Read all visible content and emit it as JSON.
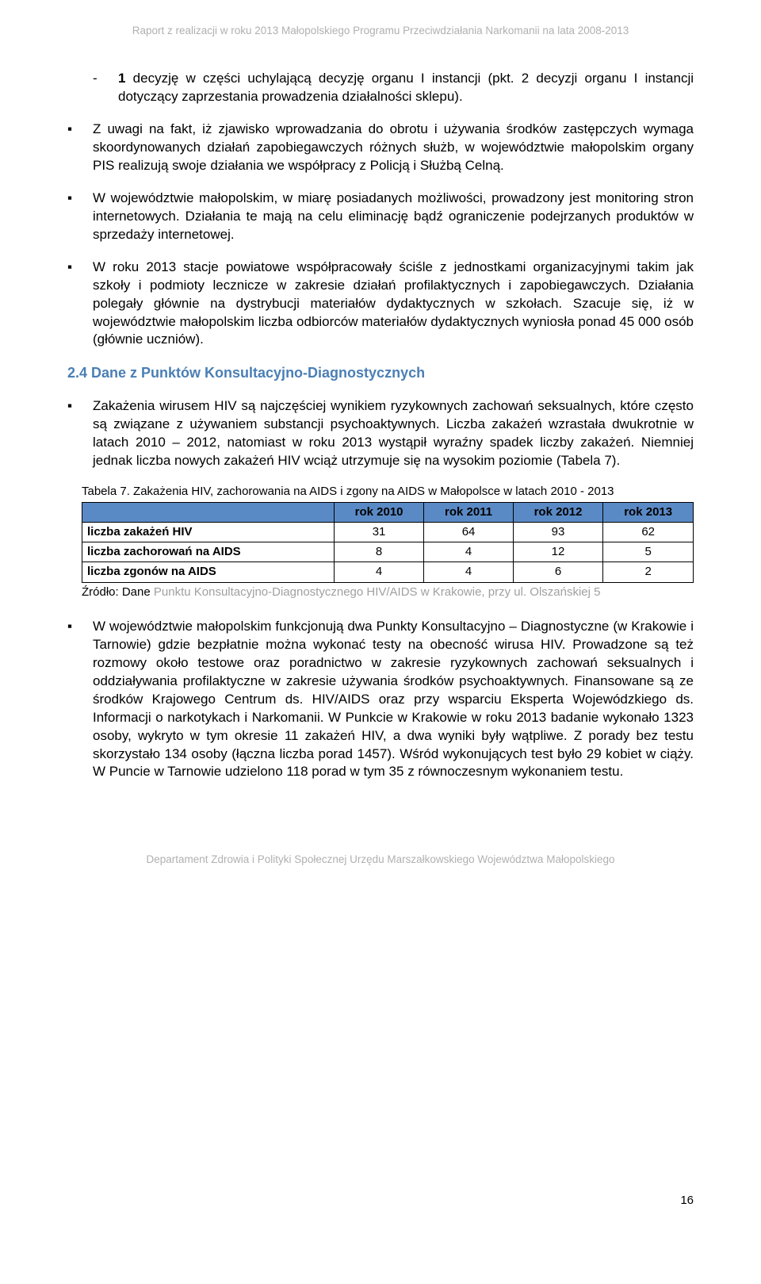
{
  "header": "Raport z realizacji w roku 2013 Małopolskiego Programu Przeciwdziałania Narkomanii na lata 2008-2013",
  "footer": "Departament Zdrowia i Polityki Społecznej Urzędu Marszałkowskiego Województwa Małopolskiego",
  "page_number": "16",
  "sub_item": {
    "marker": "-",
    "bold": "1",
    "text": " decyzję w części uchylającą decyzję organu I instancji (pkt. 2 decyzji organu I instancji dotyczący zaprzestania prowadzenia działalności sklepu)."
  },
  "bullets": [
    {
      "marker": "▪",
      "text": "Z uwagi na fakt, iż zjawisko wprowadzania do obrotu i używania środków zastępczych wymaga skoordynowanych działań zapobiegawczych różnych służb, w województwie małopolskim organy PIS realizują swoje działania we współpracy z Policją i Służbą Celną."
    },
    {
      "marker": "▪",
      "text": "W województwie małopolskim, w miarę posiadanych możliwości, prowadzony jest monitoring stron internetowych. Działania te mają na celu eliminację bądź ograniczenie podejrzanych produktów w sprzedaży internetowej."
    },
    {
      "marker": "▪",
      "text": "W roku 2013 stacje powiatowe współpracowały ściśle z jednostkami organizacyjnymi takim jak szkoły i podmioty lecznicze w zakresie działań profilaktycznych i zapobiegawczych. Działania polegały głównie na dystrybucji materiałów dydaktycznych w szkołach. Szacuje się, iż w województwie małopolskim liczba odbiorców materiałów dydaktycznych wyniosła ponad 45 000 osób (głównie uczniów)."
    }
  ],
  "section_heading": "2.4 Dane z Punktów Konsultacyjno-Diagnostycznych",
  "bullets2": [
    {
      "marker": "▪",
      "text": "Zakażenia wirusem HIV są najczęściej wynikiem ryzykownych zachowań seksualnych, które często są związane z używaniem substancji psychoaktywnych. Liczba zakażeń wzrastała dwukrotnie w latach 2010 – 2012, natomiast w roku 2013 wystąpił wyraźny spadek liczby zakażeń. Niemniej jednak liczba nowych zakażeń HIV wciąż utrzymuje się na wysokim poziomie (Tabela 7)."
    }
  ],
  "table": {
    "caption": "Tabela 7. Zakażenia HIV, zachorowania na AIDS i zgony na AIDS  w Małopolsce w latach 2010 - 2013",
    "header_bg": "#5a8ac6",
    "border_color": "#000000",
    "columns": [
      "",
      "rok 2010",
      "rok 2011",
      "rok 2012",
      "rok 2013"
    ],
    "rows": [
      [
        "liczba zakażeń HIV",
        "31",
        "64",
        "93",
        "62"
      ],
      [
        "liczba zachorowań na AIDS",
        "8",
        "4",
        "12",
        "5"
      ],
      [
        "liczba zgonów na AIDS",
        "4",
        "4",
        "6",
        "2"
      ]
    ],
    "source_black": "Źródło: Dane ",
    "source_gray": "Punktu Konsultacyjno-Diagnostycznego HIV/AIDS w Krakowie, przy ul. Olszańskiej 5"
  },
  "bullets3": [
    {
      "marker": "▪",
      "text": "W województwie małopolskim funkcjonują dwa Punkty Konsultacyjno – Diagnostyczne (w Krakowie i Tarnowie) gdzie bezpłatnie można wykonać testy na obecność wirusa HIV. Prowadzone są też rozmowy około testowe oraz poradnictwo w zakresie ryzykownych zachowań seksualnych i  oddziaływania profilaktyczne w zakresie używania środków psychoaktywnych. Finansowane są ze środków Krajowego Centrum ds. HIV/AIDS oraz przy wsparciu Eksperta Wojewódzkiego ds. Informacji o narkotykach i Narkomanii. W Punkcie w Krakowie w roku 2013 badanie wykonało 1323 osoby, wykryto w tym okresie 11  zakażeń HIV, a dwa wyniki były wątpliwe. Z porady bez testu skorzystało 134 osoby (łączna liczba porad 1457).  Wśród wykonujących test było 29 kobiet w ciąży. W Puncie w Tarnowie udzielono 118 porad w tym 35 z równoczesnym wykonaniem testu."
    }
  ]
}
